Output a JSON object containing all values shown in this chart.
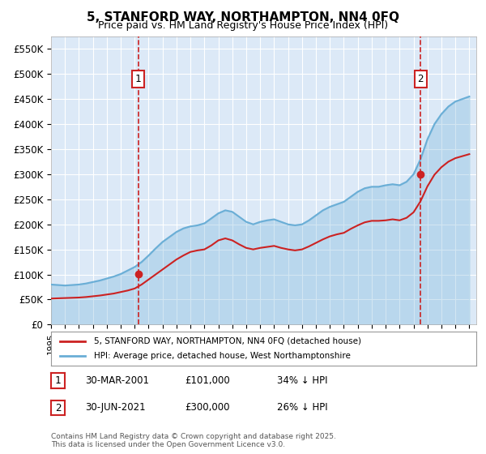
{
  "title": "5, STANFORD WAY, NORTHAMPTON, NN4 0FQ",
  "subtitle": "Price paid vs. HM Land Registry's House Price Index (HPI)",
  "xlabel": "",
  "ylabel": "",
  "ylim": [
    0,
    575000
  ],
  "yticks": [
    0,
    50000,
    100000,
    150000,
    200000,
    250000,
    300000,
    350000,
    400000,
    450000,
    500000,
    550000
  ],
  "ytick_labels": [
    "£0",
    "£50K",
    "£100K",
    "£150K",
    "£200K",
    "£250K",
    "£300K",
    "£350K",
    "£400K",
    "£450K",
    "£500K",
    "£550K"
  ],
  "background_color": "#ffffff",
  "plot_bg_color": "#dce9f7",
  "grid_color": "#ffffff",
  "hpi_color": "#6aaed6",
  "price_color": "#cc2222",
  "sale1_x": 2001.25,
  "sale1_y": 101000,
  "sale1_label": "1",
  "sale2_x": 2021.5,
  "sale2_y": 300000,
  "sale2_label": "2",
  "annotation1_date": "30-MAR-2001",
  "annotation1_price": "£101,000",
  "annotation1_note": "34% ↓ HPI",
  "annotation2_date": "30-JUN-2021",
  "annotation2_price": "£300,000",
  "annotation2_note": "26% ↓ HPI",
  "legend_price": "5, STANFORD WAY, NORTHAMPTON, NN4 0FQ (detached house)",
  "legend_hpi": "HPI: Average price, detached house, West Northamptonshire",
  "footnote": "Contains HM Land Registry data © Crown copyright and database right 2025.\nThis data is licensed under the Open Government Licence v3.0.",
  "hpi_years": [
    1995,
    1995.5,
    1996,
    1996.5,
    1997,
    1997.5,
    1998,
    1998.5,
    1999,
    1999.5,
    2000,
    2000.5,
    2001,
    2001.5,
    2002,
    2002.5,
    2003,
    2003.5,
    2004,
    2004.5,
    2005,
    2005.5,
    2006,
    2006.5,
    2007,
    2007.5,
    2008,
    2008.5,
    2009,
    2009.5,
    2010,
    2010.5,
    2011,
    2011.5,
    2012,
    2012.5,
    2013,
    2013.5,
    2014,
    2014.5,
    2015,
    2015.5,
    2016,
    2016.5,
    2017,
    2017.5,
    2018,
    2018.5,
    2019,
    2019.5,
    2020,
    2020.5,
    2021,
    2021.5,
    2022,
    2022.5,
    2023,
    2023.5,
    2024,
    2024.5,
    2025
  ],
  "hpi_values": [
    80000,
    79000,
    78000,
    79000,
    80000,
    82000,
    85000,
    88000,
    92000,
    96000,
    101000,
    108000,
    115000,
    125000,
    138000,
    152000,
    165000,
    175000,
    185000,
    192000,
    196000,
    198000,
    202000,
    212000,
    222000,
    228000,
    225000,
    215000,
    205000,
    200000,
    205000,
    208000,
    210000,
    205000,
    200000,
    198000,
    200000,
    208000,
    218000,
    228000,
    235000,
    240000,
    245000,
    255000,
    265000,
    272000,
    275000,
    275000,
    278000,
    280000,
    278000,
    285000,
    300000,
    330000,
    370000,
    400000,
    420000,
    435000,
    445000,
    450000,
    455000
  ],
  "price_years": [
    1995,
    1995.5,
    1996,
    1996.5,
    1997,
    1997.5,
    1998,
    1998.5,
    1999,
    1999.5,
    2000,
    2000.5,
    2001,
    2001.5,
    2002,
    2002.5,
    2003,
    2003.5,
    2004,
    2004.5,
    2005,
    2005.5,
    2006,
    2006.5,
    2007,
    2007.5,
    2008,
    2008.5,
    2009,
    2009.5,
    2010,
    2010.5,
    2011,
    2011.5,
    2012,
    2012.5,
    2013,
    2013.5,
    2014,
    2014.5,
    2015,
    2015.5,
    2016,
    2016.5,
    2017,
    2017.5,
    2018,
    2018.5,
    2019,
    2019.5,
    2020,
    2020.5,
    2021,
    2021.5,
    2022,
    2022.5,
    2023,
    2023.5,
    2024,
    2024.5,
    2025
  ],
  "price_values": [
    52000,
    52500,
    53000,
    53500,
    54000,
    55000,
    56500,
    58000,
    60000,
    62000,
    65000,
    68000,
    72000,
    80000,
    90000,
    100000,
    110000,
    120000,
    130000,
    138000,
    145000,
    148000,
    150000,
    158000,
    168000,
    172000,
    168000,
    160000,
    153000,
    150000,
    153000,
    155000,
    157000,
    153000,
    150000,
    148000,
    150000,
    156000,
    163000,
    170000,
    176000,
    180000,
    183000,
    191000,
    198000,
    204000,
    207000,
    207000,
    208000,
    210000,
    208000,
    213000,
    224000,
    246000,
    276000,
    299000,
    314000,
    325000,
    332000,
    336000,
    340000
  ],
  "xmin": 1995,
  "xmax": 2025.5,
  "xticks": [
    1995,
    1996,
    1997,
    1998,
    1999,
    2000,
    2001,
    2002,
    2003,
    2004,
    2005,
    2006,
    2007,
    2008,
    2009,
    2010,
    2011,
    2012,
    2013,
    2014,
    2015,
    2016,
    2017,
    2018,
    2019,
    2020,
    2021,
    2022,
    2023,
    2024,
    2025
  ]
}
